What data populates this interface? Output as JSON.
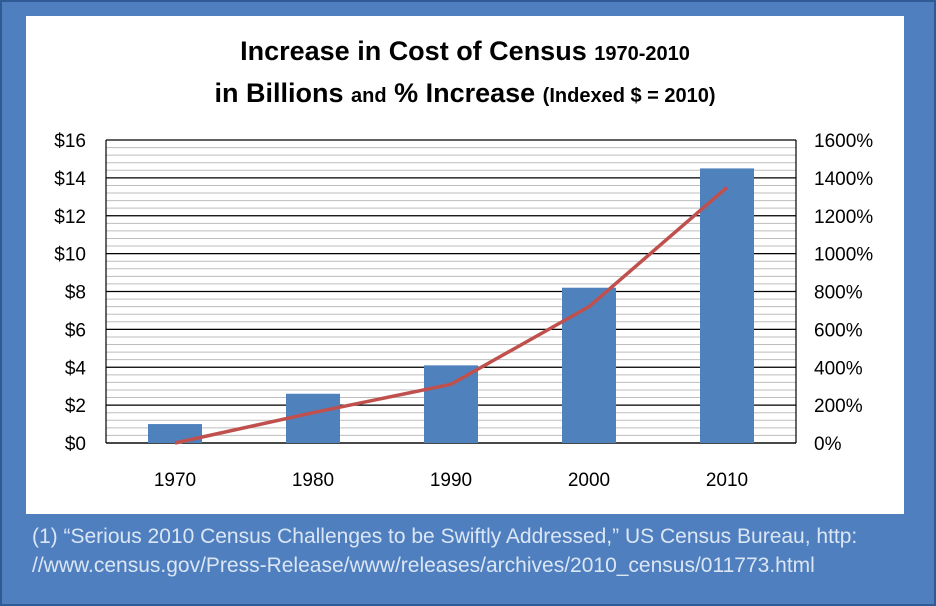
{
  "chart_data": {
    "type": "bar+line",
    "title": {
      "line1_main": "Increase in Cost of Census",
      "line1_small": "1970-2010",
      "line2_main": "in Billions",
      "line2_and": "and",
      "line2_pct": "% Increase",
      "line2_note": "(Indexed $ = 2010)"
    },
    "categories": [
      "1970",
      "1980",
      "1990",
      "2000",
      "2010"
    ],
    "bar_series": {
      "axis": "left",
      "values": [
        1.0,
        2.6,
        4.1,
        8.2,
        14.5
      ],
      "color": "#4f81bd"
    },
    "line_series": {
      "axis": "right",
      "values": [
        0,
        160,
        310,
        720,
        1350
      ],
      "color": "#c0504d"
    },
    "y_left": {
      "ylim": [
        0,
        16
      ],
      "ticks": [
        "$0",
        "$2",
        "$4",
        "$6",
        "$8",
        "$10",
        "$12",
        "$14",
        "$16"
      ]
    },
    "y_right": {
      "ylim": [
        0,
        1600
      ],
      "ticks": [
        "0%",
        "200%",
        "400%",
        "600%",
        "800%",
        "1000%",
        "1200%",
        "1400%",
        "1600%"
      ]
    },
    "grid": true
  },
  "footnote": {
    "line1": "(1)  “Serious 2010 Census Challenges to be Swiftly Addressed,”  US Census Bureau, http:",
    "line2": "//www.census.gov/Press-Release/www/releases/archives/2010_census/011773.html"
  },
  "colors": {
    "background": "#4f7fbe",
    "bar": "#4f81bd",
    "line": "#c0504d",
    "footnote_text": "#dbe6f5"
  }
}
